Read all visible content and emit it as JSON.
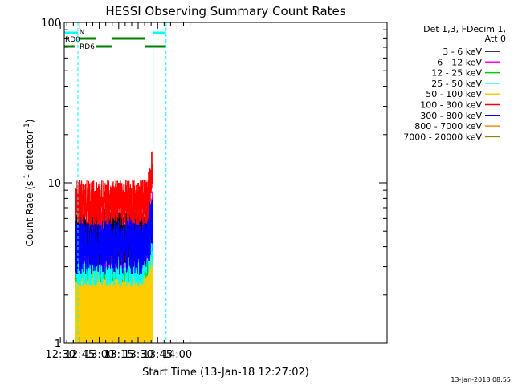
{
  "chart_data": {
    "type": "line",
    "title": "HESSI Observing Summary Count Rates",
    "xlabel": "Start Time (13-Jan-18 12:27:02)",
    "ylabel": "Count Rate (s",
    "ylabel_sup": "-1",
    "ylabel_tail": " detector",
    "ylabel_sup2": "-1",
    "ylabel_close": ")",
    "yscale": "log",
    "ylim": [
      1,
      100
    ],
    "xlim_minutes": [
      753,
      1002
    ],
    "x_tick_labels": [
      "12:30",
      "12:45",
      "13:00",
      "13:15",
      "13:30",
      "13:45",
      "14:00"
    ],
    "x_tick_minutes": [
      750,
      765,
      780,
      795,
      810,
      825,
      840
    ],
    "y_tick_labels": [
      "1",
      "10",
      "100"
    ],
    "y_tick_values": [
      1,
      10,
      100
    ],
    "data_start_minute": 761.5,
    "data_end_minute": 821.5,
    "legend_header": [
      "Det 1,3, FDecim 1,",
      "Att 0"
    ],
    "series": [
      {
        "name": "3 - 6 keV",
        "color": "#000000",
        "approx_level": 4.6
      },
      {
        "name": "6 - 12 keV",
        "color": "#ff00ff",
        "approx_level": 4.4
      },
      {
        "name": "12 - 25 keV",
        "color": "#00cc00",
        "approx_level": 3.6
      },
      {
        "name": "25 - 50 keV",
        "color": "#00ffff",
        "approx_level": 3.4
      },
      {
        "name": "50 - 100 keV",
        "color": "#ffcc00",
        "approx_level": 3.0
      },
      {
        "name": "100 - 300 keV",
        "color": "#ff0000",
        "approx_level": 7.5
      },
      {
        "name": "300 - 800 keV",
        "color": "#0000ff",
        "approx_level": 4.0
      },
      {
        "name": "800 - 7000 keV",
        "color": "#ff8800",
        "approx_level": 2.0
      },
      {
        "name": "7000 - 20000 keV",
        "color": "#888800",
        "approx_level": 1.2
      }
    ],
    "annotations": [
      {
        "label": "N",
        "color": "#00ffff",
        "segments_minutes": [
          [
            753,
            763.5
          ],
          [
            821.5,
            831.5
          ]
        ]
      },
      {
        "label": "RD0",
        "color": "#008000",
        "segments_minutes": [
          [
            764,
            777.5
          ],
          [
            789.5,
            815
          ]
        ]
      },
      {
        "label": "RD6",
        "color": "#008000",
        "segments_minutes": [
          [
            753,
            761
          ],
          [
            777.5,
            789.5
          ],
          [
            815,
            831.5
          ]
        ]
      }
    ],
    "dashed_markers_minutes": [
      763.5,
      831.5
    ],
    "solid_markers_minutes": [
      753,
      821.5
    ],
    "timestamp": "13-Jan-2018 08:55"
  }
}
